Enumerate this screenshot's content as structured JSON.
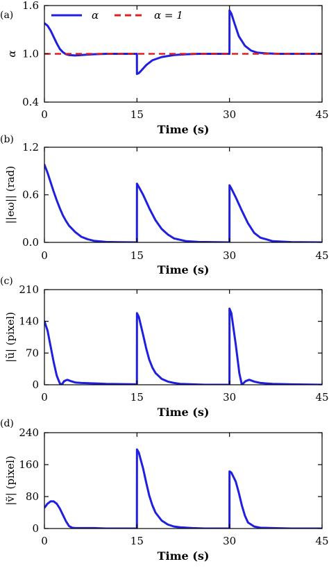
{
  "chart_data": [
    {
      "type": "line",
      "panel_label": "(a)",
      "xlabel": "Time (s)",
      "ylabel": "α",
      "xlim": [
        0,
        45
      ],
      "ylim": [
        0.4,
        1.6
      ],
      "xticks": [
        0,
        15,
        30,
        45
      ],
      "xtick_labels": [
        "0",
        "15",
        "30",
        "45"
      ],
      "yticks": [
        0.4,
        1.0,
        1.6
      ],
      "ytick_labels": [
        "0.4",
        "1.0",
        "1.6"
      ],
      "legend_position": "top",
      "series": [
        {
          "name": "α",
          "color": "#1f1fe0",
          "style": "solid",
          "x": [
            0,
            0.5,
            1,
            1.5,
            2,
            2.5,
            3,
            3.5,
            4,
            5,
            6,
            7,
            8,
            10,
            12,
            14.99,
            15,
            15.3,
            15.8,
            16.5,
            17.5,
            19,
            21,
            23,
            25,
            29.99,
            30,
            30.3,
            30.8,
            31.5,
            32.5,
            33.5,
            34.5,
            36,
            38,
            40,
            45
          ],
          "y": [
            1.38,
            1.35,
            1.29,
            1.21,
            1.13,
            1.06,
            1.02,
            0.995,
            0.985,
            0.98,
            0.985,
            0.99,
            0.995,
            1.0,
            1.0,
            1.0,
            0.75,
            0.76,
            0.8,
            0.86,
            0.92,
            0.96,
            0.985,
            0.995,
            1.0,
            1.0,
            1.54,
            1.5,
            1.38,
            1.22,
            1.1,
            1.04,
            1.015,
            1.005,
            1.0,
            1.0,
            1.0
          ]
        },
        {
          "name": "α = 1",
          "color": "#e01f1f",
          "style": "dashed",
          "x": [
            0,
            45
          ],
          "y": [
            1.0,
            1.0
          ]
        }
      ]
    },
    {
      "type": "line",
      "panel_label": "(b)",
      "xlabel": "Time (s)",
      "ylabel": "||eω|| (rad)",
      "xlim": [
        0,
        45
      ],
      "ylim": [
        0,
        1.2
      ],
      "xticks": [
        0,
        15,
        30,
        45
      ],
      "xtick_labels": [
        "0",
        "15",
        "30",
        "45"
      ],
      "yticks": [
        0,
        0.6,
        1.2
      ],
      "ytick_labels": [
        "0.0",
        "0.6",
        "1.2"
      ],
      "series": [
        {
          "color": "#1f1fe0",
          "style": "solid",
          "x": [
            0,
            0.5,
            1,
            1.5,
            2,
            2.5,
            3,
            3.5,
            4,
            5,
            6,
            7,
            8,
            10,
            12,
            14.99,
            15,
            15.3,
            16,
            17,
            18,
            19,
            20,
            21,
            23,
            25,
            29.99,
            30,
            30.3,
            31,
            32,
            33,
            34,
            35,
            37,
            40,
            45
          ],
          "y": [
            0.98,
            0.88,
            0.76,
            0.64,
            0.53,
            0.43,
            0.34,
            0.27,
            0.21,
            0.13,
            0.07,
            0.04,
            0.02,
            0.005,
            0.002,
            0.0,
            0.74,
            0.7,
            0.6,
            0.43,
            0.28,
            0.17,
            0.1,
            0.05,
            0.015,
            0.005,
            0.0,
            0.72,
            0.68,
            0.57,
            0.4,
            0.24,
            0.12,
            0.06,
            0.015,
            0.003,
            0.0
          ]
        }
      ]
    },
    {
      "type": "line",
      "panel_label": "(c)",
      "xlabel": "Time (s)",
      "ylabel": "|ũ| (pixel)",
      "xlim": [
        0,
        45
      ],
      "ylim": [
        0,
        210
      ],
      "xticks": [
        0,
        15,
        30,
        45
      ],
      "xtick_labels": [
        "0",
        "15",
        "30",
        "45"
      ],
      "yticks": [
        0,
        70,
        140,
        210
      ],
      "ytick_labels": [
        "0",
        "70",
        "140",
        "210"
      ],
      "series": [
        {
          "color": "#1f1fe0",
          "style": "solid",
          "x": [
            0,
            0.5,
            1,
            1.5,
            2,
            2.5,
            2.8,
            3.2,
            3.7,
            4.3,
            5,
            6,
            8,
            10,
            14.99,
            15,
            15.3,
            16,
            16.5,
            17,
            17.5,
            18,
            19,
            20,
            21,
            22,
            24,
            26,
            29.99,
            30,
            30.3,
            31,
            31.6,
            32,
            32.6,
            33.2,
            34,
            35,
            37,
            40,
            45
          ],
          "y": [
            140,
            120,
            85,
            50,
            20,
            3,
            0,
            8,
            11,
            8,
            5,
            4,
            3,
            2,
            1,
            158,
            150,
            110,
            80,
            55,
            38,
            26,
            13,
            7,
            4,
            2,
            1,
            0,
            0,
            168,
            158,
            90,
            25,
            0,
            8,
            11,
            7,
            4,
            2,
            1,
            0
          ]
        }
      ]
    },
    {
      "type": "line",
      "panel_label": "(d)",
      "xlabel": "Time (s)",
      "ylabel": "|ṽ| (pixel)",
      "xlim": [
        0,
        45
      ],
      "ylim": [
        0,
        240
      ],
      "xticks": [
        0,
        15,
        30,
        45
      ],
      "xtick_labels": [
        "0",
        "15",
        "30",
        "45"
      ],
      "yticks": [
        0,
        80,
        160,
        240
      ],
      "ytick_labels": [
        "0",
        "80",
        "160",
        "240"
      ],
      "series": [
        {
          "color": "#1f1fe0",
          "style": "solid",
          "x": [
            0,
            0.5,
            1,
            1.5,
            2,
            2.5,
            3,
            3.5,
            4,
            4.5,
            5,
            6,
            8,
            10,
            14.99,
            15,
            15.3,
            16,
            16.5,
            17,
            17.5,
            18,
            19,
            20,
            21,
            22,
            24,
            26,
            29.99,
            30,
            30.3,
            31,
            31.5,
            32,
            32.5,
            33,
            34,
            35,
            37,
            40,
            45
          ],
          "y": [
            52,
            62,
            68,
            68,
            62,
            50,
            34,
            18,
            6,
            2,
            1,
            1,
            1,
            0,
            0,
            198,
            190,
            150,
            115,
            82,
            58,
            40,
            20,
            10,
            5,
            3,
            1,
            0,
            0,
            143,
            140,
            118,
            90,
            58,
            32,
            15,
            5,
            2,
            1,
            0,
            0
          ]
        }
      ]
    }
  ]
}
